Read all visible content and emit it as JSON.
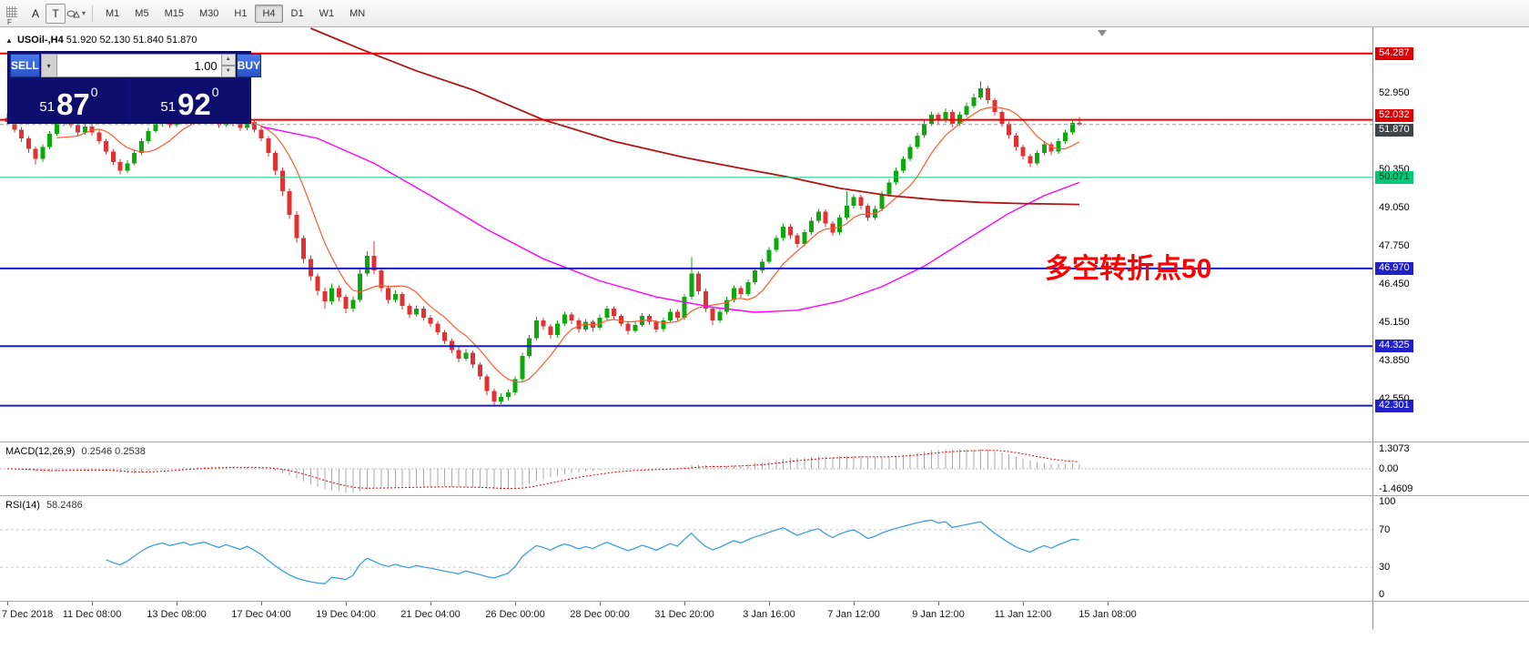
{
  "toolbar": {
    "handle_label": "F",
    "tools": [
      {
        "label": "A"
      },
      {
        "label": "T"
      }
    ],
    "timeframes": [
      {
        "label": "M1",
        "active": false
      },
      {
        "label": "M5",
        "active": false
      },
      {
        "label": "M15",
        "active": false
      },
      {
        "label": "M30",
        "active": false
      },
      {
        "label": "H1",
        "active": false
      },
      {
        "label": "H4",
        "active": true
      },
      {
        "label": "D1",
        "active": false
      },
      {
        "label": "W1",
        "active": false
      },
      {
        "label": "MN",
        "active": false
      }
    ]
  },
  "chart": {
    "symbol_period": "USOil-,H4",
    "ohlc_text": "51.920 52.130 51.840 51.870"
  },
  "one_click": {
    "sell_label": "SELL",
    "buy_label": "BUY",
    "volume": "1.00",
    "sell_small": "51",
    "sell_big": "87",
    "sell_sup": "0",
    "buy_small": "51",
    "buy_big": "92",
    "buy_sup": "0"
  },
  "annotation": {
    "text": "多空转折点50",
    "color": "#ff0000"
  },
  "price_axis": {
    "ticks": [
      {
        "label": "52.950",
        "price": 52.95
      },
      {
        "label": "50.350",
        "price": 50.35
      },
      {
        "label": "49.050",
        "price": 49.05
      },
      {
        "label": "47.750",
        "price": 47.75
      },
      {
        "label": "46.450",
        "price": 46.45
      },
      {
        "label": "45.150",
        "price": 45.15
      },
      {
        "label": "43.850",
        "price": 43.85
      },
      {
        "label": "42.550",
        "price": 42.55
      }
    ]
  },
  "levels": [
    {
      "label": "54.287",
      "price": 54.287,
      "color": "#ee0000",
      "badge": "#dd0000",
      "style": "solid",
      "width": 2,
      "nudge": 0
    },
    {
      "label": "52.032",
      "price": 52.032,
      "color": "#ee0000",
      "badge": "#dd0000",
      "style": "solid",
      "width": 2,
      "nudge": -5
    },
    {
      "label": "51.870",
      "price": 51.87,
      "color": "#9aa0a6",
      "badge": "#3f4448",
      "style": "dash",
      "width": 1,
      "nudge": 6
    },
    {
      "label": "50.071",
      "price": 50.071,
      "color": "#00ce7c",
      "badge": "#00c878",
      "text_color": "#003c22",
      "style": "solid",
      "width": 1,
      "nudge": 0
    },
    {
      "label": "46.970",
      "price": 46.97,
      "color": "#1a1acd",
      "badge": "#2020c8",
      "style": "solid",
      "width": 2,
      "nudge": 0
    },
    {
      "label": "44.325",
      "price": 44.325,
      "color": "#1a1acd",
      "badge": "#2020c8",
      "style": "solid",
      "width": 2,
      "nudge": 0
    },
    {
      "label": "42.301",
      "price": 42.301,
      "color": "#1a1acd",
      "badge": "#2020c8",
      "style": "solid",
      "width": 2,
      "nudge": 0
    }
  ],
  "macd": {
    "title": "MACD(12,26,9)",
    "values": "0.2546 0.2538",
    "axis": [
      {
        "label": "1.3073",
        "value": 1.3073
      },
      {
        "label": "0.00",
        "value": 0
      },
      {
        "label": "-1.4609",
        "value": -1.4609
      }
    ]
  },
  "rsi": {
    "title": "RSI(14)",
    "value": "58.2486",
    "axis": [
      {
        "label": "100",
        "value": 100
      },
      {
        "label": "70",
        "value": 70
      },
      {
        "label": "30",
        "value": 30
      },
      {
        "label": "0",
        "value": 0
      }
    ],
    "levels": [
      70,
      30
    ]
  },
  "time_axis": [
    {
      "label": "7 Dec 2018",
      "bar": 0
    },
    {
      "label": "11 Dec 08:00",
      "bar": 12
    },
    {
      "label": "13 Dec 08:00",
      "bar": 24
    },
    {
      "label": "17 Dec 04:00",
      "bar": 36
    },
    {
      "label": "19 Dec 04:00",
      "bar": 48
    },
    {
      "label": "21 Dec 04:00",
      "bar": 60
    },
    {
      "label": "26 Dec 00:00",
      "bar": 72
    },
    {
      "label": "28 Dec 00:00",
      "bar": 84
    },
    {
      "label": "31 Dec 20:00",
      "bar": 96
    },
    {
      "label": "3 Jan 16:00",
      "bar": 108
    },
    {
      "label": "7 Jan 12:00",
      "bar": 120
    },
    {
      "label": "9 Jan 12:00",
      "bar": 132
    },
    {
      "label": "11 Jan 12:00",
      "bar": 144
    },
    {
      "label": "15 Jan 08:00",
      "bar": 156
    }
  ],
  "chart_data": {
    "type": "candlestick",
    "symbol": "USOil",
    "timeframe": "H4",
    "y_min": 41.08,
    "y_max": 55.18,
    "colors": {
      "bull": "#0ca80c",
      "bear": "#e03232",
      "ma_fast": "#ff5a2d",
      "ma_mid": "#ff00ff",
      "ma_slow": "#b01414",
      "macd_hist": "#a8a8a8",
      "macd_signal": "#e00000",
      "rsi_line": "#3f9fdf"
    },
    "ma_fast_period": 8,
    "ma_slow_anchors": [
      [
        43,
        55.15
      ],
      [
        50,
        54.45
      ],
      [
        58,
        53.7
      ],
      [
        66,
        53.05
      ],
      [
        76,
        52.03
      ],
      [
        86,
        51.3
      ],
      [
        96,
        50.75
      ],
      [
        104,
        50.38
      ],
      [
        111,
        50.07
      ],
      [
        118,
        49.7
      ],
      [
        125,
        49.45
      ],
      [
        132,
        49.3
      ],
      [
        138,
        49.22
      ],
      [
        144,
        49.18
      ],
      [
        152,
        49.15
      ]
    ],
    "ma_mid_anchors": [
      [
        36,
        51.8
      ],
      [
        44,
        51.4
      ],
      [
        52,
        50.55
      ],
      [
        60,
        49.45
      ],
      [
        68,
        48.3
      ],
      [
        76,
        47.3
      ],
      [
        84,
        46.55
      ],
      [
        92,
        46.0
      ],
      [
        100,
        45.65
      ],
      [
        106,
        45.48
      ],
      [
        112,
        45.55
      ],
      [
        118,
        45.85
      ],
      [
        124,
        46.35
      ],
      [
        130,
        47.05
      ],
      [
        136,
        47.95
      ],
      [
        142,
        48.85
      ],
      [
        147,
        49.45
      ],
      [
        152,
        49.9
      ]
    ],
    "ohlc": [
      [
        52.1,
        52.25,
        51.85,
        51.95
      ],
      [
        51.95,
        52.05,
        51.6,
        51.7
      ],
      [
        51.7,
        51.78,
        51.28,
        51.4
      ],
      [
        51.4,
        51.48,
        50.9,
        51.05
      ],
      [
        51.05,
        51.12,
        50.52,
        50.7
      ],
      [
        50.7,
        51.2,
        50.6,
        51.1
      ],
      [
        51.1,
        51.65,
        51.02,
        51.55
      ],
      [
        51.55,
        52.0,
        51.48,
        51.9
      ],
      [
        51.9,
        52.22,
        51.82,
        52.1
      ],
      [
        52.1,
        52.18,
        51.75,
        51.85
      ],
      [
        51.85,
        51.92,
        51.5,
        51.6
      ],
      [
        51.6,
        51.9,
        51.52,
        51.8
      ],
      [
        51.8,
        51.88,
        51.5,
        51.6
      ],
      [
        51.6,
        51.68,
        51.2,
        51.3
      ],
      [
        51.3,
        51.38,
        50.85,
        50.95
      ],
      [
        50.95,
        51.02,
        50.5,
        50.6
      ],
      [
        50.6,
        50.7,
        50.18,
        50.3
      ],
      [
        50.3,
        50.65,
        50.22,
        50.55
      ],
      [
        50.55,
        51.0,
        50.48,
        50.9
      ],
      [
        50.9,
        51.4,
        50.82,
        51.3
      ],
      [
        51.3,
        51.75,
        51.22,
        51.65
      ],
      [
        51.65,
        52.0,
        51.58,
        51.9
      ],
      [
        51.9,
        52.15,
        51.8,
        52.05
      ],
      [
        52.05,
        52.12,
        51.75,
        51.85
      ],
      [
        51.85,
        52.08,
        51.78,
        52.0
      ],
      [
        52.0,
        52.25,
        51.92,
        52.15
      ],
      [
        52.15,
        52.22,
        51.85,
        51.95
      ],
      [
        51.95,
        52.18,
        51.88,
        52.1
      ],
      [
        52.1,
        52.3,
        52.02,
        52.2
      ],
      [
        52.2,
        52.28,
        51.9,
        52.0
      ],
      [
        52.0,
        52.1,
        51.75,
        51.85
      ],
      [
        51.85,
        52.12,
        51.78,
        52.05
      ],
      [
        52.05,
        52.12,
        51.8,
        51.9
      ],
      [
        51.9,
        51.98,
        51.65,
        51.75
      ],
      [
        51.75,
        52.02,
        51.68,
        51.95
      ],
      [
        51.95,
        52.0,
        51.6,
        51.7
      ],
      [
        51.7,
        51.78,
        51.3,
        51.4
      ],
      [
        51.4,
        51.48,
        50.78,
        50.9
      ],
      [
        50.9,
        50.98,
        50.15,
        50.3
      ],
      [
        50.3,
        50.4,
        49.45,
        49.6
      ],
      [
        49.6,
        49.7,
        48.65,
        48.8
      ],
      [
        48.8,
        48.92,
        47.85,
        48.0
      ],
      [
        48.0,
        48.1,
        47.15,
        47.3
      ],
      [
        47.3,
        47.42,
        46.55,
        46.7
      ],
      [
        46.7,
        46.8,
        46.05,
        46.2
      ],
      [
        46.2,
        46.32,
        45.6,
        45.85
      ],
      [
        45.85,
        46.45,
        45.75,
        46.3
      ],
      [
        46.3,
        46.4,
        45.85,
        46.0
      ],
      [
        46.0,
        46.08,
        45.45,
        45.6
      ],
      [
        45.6,
        46.02,
        45.5,
        45.9
      ],
      [
        45.9,
        46.95,
        45.82,
        46.8
      ],
      [
        46.8,
        47.55,
        46.7,
        47.4
      ],
      [
        47.4,
        47.9,
        46.78,
        46.9
      ],
      [
        46.9,
        47.0,
        46.18,
        46.3
      ],
      [
        46.3,
        46.4,
        45.78,
        45.9
      ],
      [
        45.9,
        46.22,
        45.8,
        46.1
      ],
      [
        46.1,
        46.18,
        45.58,
        45.7
      ],
      [
        45.7,
        45.78,
        45.28,
        45.4
      ],
      [
        45.4,
        45.72,
        45.32,
        45.6
      ],
      [
        45.6,
        45.68,
        45.18,
        45.3
      ],
      [
        45.3,
        45.38,
        44.98,
        45.1
      ],
      [
        45.1,
        45.18,
        44.7,
        44.8
      ],
      [
        44.8,
        44.88,
        44.4,
        44.5
      ],
      [
        44.5,
        44.58,
        44.08,
        44.2
      ],
      [
        44.2,
        44.3,
        43.78,
        43.9
      ],
      [
        43.9,
        44.22,
        43.82,
        44.1
      ],
      [
        44.1,
        44.18,
        43.58,
        43.7
      ],
      [
        43.7,
        43.78,
        43.18,
        43.3
      ],
      [
        43.3,
        43.38,
        42.65,
        42.8
      ],
      [
        42.8,
        42.88,
        42.3,
        42.45
      ],
      [
        42.45,
        42.72,
        42.35,
        42.6
      ],
      [
        42.6,
        42.85,
        42.48,
        42.75
      ],
      [
        42.75,
        43.3,
        42.65,
        43.2
      ],
      [
        43.2,
        44.1,
        43.12,
        44.0
      ],
      [
        44.0,
        44.7,
        43.92,
        44.6
      ],
      [
        44.6,
        45.32,
        44.52,
        45.2
      ],
      [
        45.2,
        45.3,
        44.88,
        45.0
      ],
      [
        45.0,
        45.08,
        44.58,
        44.7
      ],
      [
        44.7,
        45.2,
        44.62,
        45.1
      ],
      [
        45.1,
        45.5,
        45.02,
        45.4
      ],
      [
        45.4,
        45.48,
        45.08,
        45.2
      ],
      [
        45.2,
        45.28,
        44.78,
        44.9
      ],
      [
        44.9,
        45.25,
        44.82,
        45.15
      ],
      [
        45.15,
        45.22,
        44.82,
        44.95
      ],
      [
        44.95,
        45.4,
        44.88,
        45.3
      ],
      [
        45.3,
        45.7,
        45.22,
        45.6
      ],
      [
        45.6,
        45.68,
        45.25,
        45.35
      ],
      [
        45.35,
        45.42,
        45.0,
        45.1
      ],
      [
        45.1,
        45.18,
        44.72,
        44.85
      ],
      [
        44.85,
        45.15,
        44.78,
        45.05
      ],
      [
        45.05,
        45.45,
        44.98,
        45.35
      ],
      [
        45.35,
        45.42,
        45.05,
        45.15
      ],
      [
        45.15,
        45.22,
        44.78,
        44.9
      ],
      [
        44.9,
        45.3,
        44.82,
        45.2
      ],
      [
        45.2,
        45.6,
        45.12,
        45.5
      ],
      [
        45.5,
        45.58,
        45.2,
        45.3
      ],
      [
        45.3,
        46.1,
        45.22,
        46.0
      ],
      [
        46.0,
        47.35,
        45.92,
        46.8
      ],
      [
        46.8,
        46.88,
        46.08,
        46.2
      ],
      [
        46.2,
        46.28,
        45.48,
        45.6
      ],
      [
        45.6,
        45.68,
        45.05,
        45.2
      ],
      [
        45.2,
        45.6,
        45.12,
        45.5
      ],
      [
        45.5,
        46.0,
        45.42,
        45.9
      ],
      [
        45.9,
        46.4,
        45.82,
        46.3
      ],
      [
        46.3,
        46.38,
        45.98,
        46.1
      ],
      [
        46.1,
        46.6,
        46.02,
        46.5
      ],
      [
        46.5,
        47.0,
        46.42,
        46.9
      ],
      [
        46.9,
        47.3,
        46.82,
        47.2
      ],
      [
        47.2,
        47.7,
        47.12,
        47.6
      ],
      [
        47.6,
        48.1,
        47.52,
        48.0
      ],
      [
        48.0,
        48.5,
        47.92,
        48.4
      ],
      [
        48.4,
        48.48,
        47.98,
        48.1
      ],
      [
        48.1,
        48.18,
        47.68,
        47.8
      ],
      [
        47.8,
        48.3,
        47.72,
        48.2
      ],
      [
        48.2,
        48.7,
        48.12,
        48.6
      ],
      [
        48.6,
        49.0,
        48.52,
        48.9
      ],
      [
        48.9,
        48.98,
        48.38,
        48.5
      ],
      [
        48.5,
        48.58,
        48.08,
        48.2
      ],
      [
        48.2,
        48.8,
        48.12,
        48.7
      ],
      [
        48.7,
        49.6,
        48.62,
        49.1
      ],
      [
        49.1,
        49.5,
        49.02,
        49.4
      ],
      [
        49.4,
        49.48,
        48.98,
        49.1
      ],
      [
        49.1,
        49.18,
        48.58,
        48.7
      ],
      [
        48.7,
        49.1,
        48.62,
        49.0
      ],
      [
        49.0,
        49.6,
        48.92,
        49.5
      ],
      [
        49.5,
        50.0,
        49.42,
        49.9
      ],
      [
        49.9,
        50.4,
        49.82,
        50.3
      ],
      [
        50.3,
        50.8,
        50.22,
        50.7
      ],
      [
        50.7,
        51.2,
        50.62,
        51.1
      ],
      [
        51.1,
        51.6,
        51.02,
        51.5
      ],
      [
        51.5,
        52.0,
        51.42,
        51.9
      ],
      [
        51.9,
        52.32,
        51.82,
        52.2
      ],
      [
        52.2,
        52.28,
        51.88,
        52.0
      ],
      [
        52.0,
        52.42,
        51.92,
        52.3
      ],
      [
        52.3,
        52.38,
        51.78,
        51.9
      ],
      [
        51.9,
        52.32,
        51.82,
        52.2
      ],
      [
        52.2,
        52.62,
        52.12,
        52.5
      ],
      [
        52.5,
        52.92,
        52.42,
        52.8
      ],
      [
        52.8,
        53.35,
        52.72,
        53.1
      ],
      [
        53.1,
        53.18,
        52.58,
        52.7
      ],
      [
        52.7,
        52.78,
        52.18,
        52.3
      ],
      [
        52.3,
        52.38,
        51.78,
        51.9
      ],
      [
        51.9,
        51.98,
        51.38,
        51.5
      ],
      [
        51.5,
        51.58,
        50.98,
        51.1
      ],
      [
        51.1,
        51.18,
        50.68,
        50.8
      ],
      [
        50.8,
        50.88,
        50.42,
        50.55
      ],
      [
        50.55,
        51.0,
        50.48,
        50.9
      ],
      [
        50.9,
        51.3,
        50.82,
        51.2
      ],
      [
        51.2,
        51.28,
        50.82,
        50.95
      ],
      [
        50.95,
        51.4,
        50.88,
        51.3
      ],
      [
        51.3,
        51.7,
        51.22,
        51.6
      ],
      [
        51.6,
        52.0,
        51.52,
        51.92
      ],
      [
        51.92,
        52.13,
        51.84,
        51.87
      ]
    ]
  }
}
